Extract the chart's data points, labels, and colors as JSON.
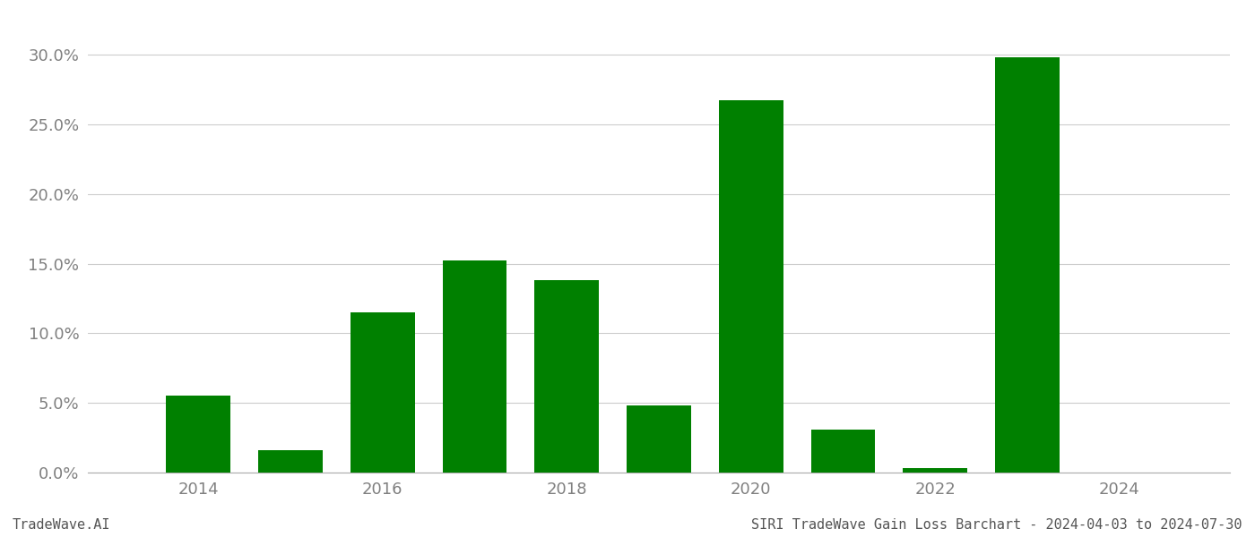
{
  "years": [
    2014,
    2015,
    2016,
    2017,
    2018,
    2019,
    2020,
    2021,
    2022,
    2023,
    2024
  ],
  "values": [
    0.055,
    0.016,
    0.115,
    0.152,
    0.138,
    0.048,
    0.267,
    0.031,
    0.003,
    0.298,
    0.0
  ],
  "bar_color": "#008000",
  "title": "SIRI TradeWave Gain Loss Barchart - 2024-04-03 to 2024-07-30",
  "watermark": "TradeWave.AI",
  "ylim": [
    0,
    0.32
  ],
  "yticks": [
    0.0,
    0.05,
    0.1,
    0.15,
    0.2,
    0.25,
    0.3
  ],
  "xticks": [
    2014,
    2016,
    2018,
    2020,
    2022,
    2024
  ],
  "background_color": "#ffffff",
  "grid_color": "#cccccc",
  "tick_label_color": "#808080",
  "watermark_color": "#555555",
  "bar_width": 0.7,
  "xlim_left": 2012.8,
  "xlim_right": 2025.2
}
